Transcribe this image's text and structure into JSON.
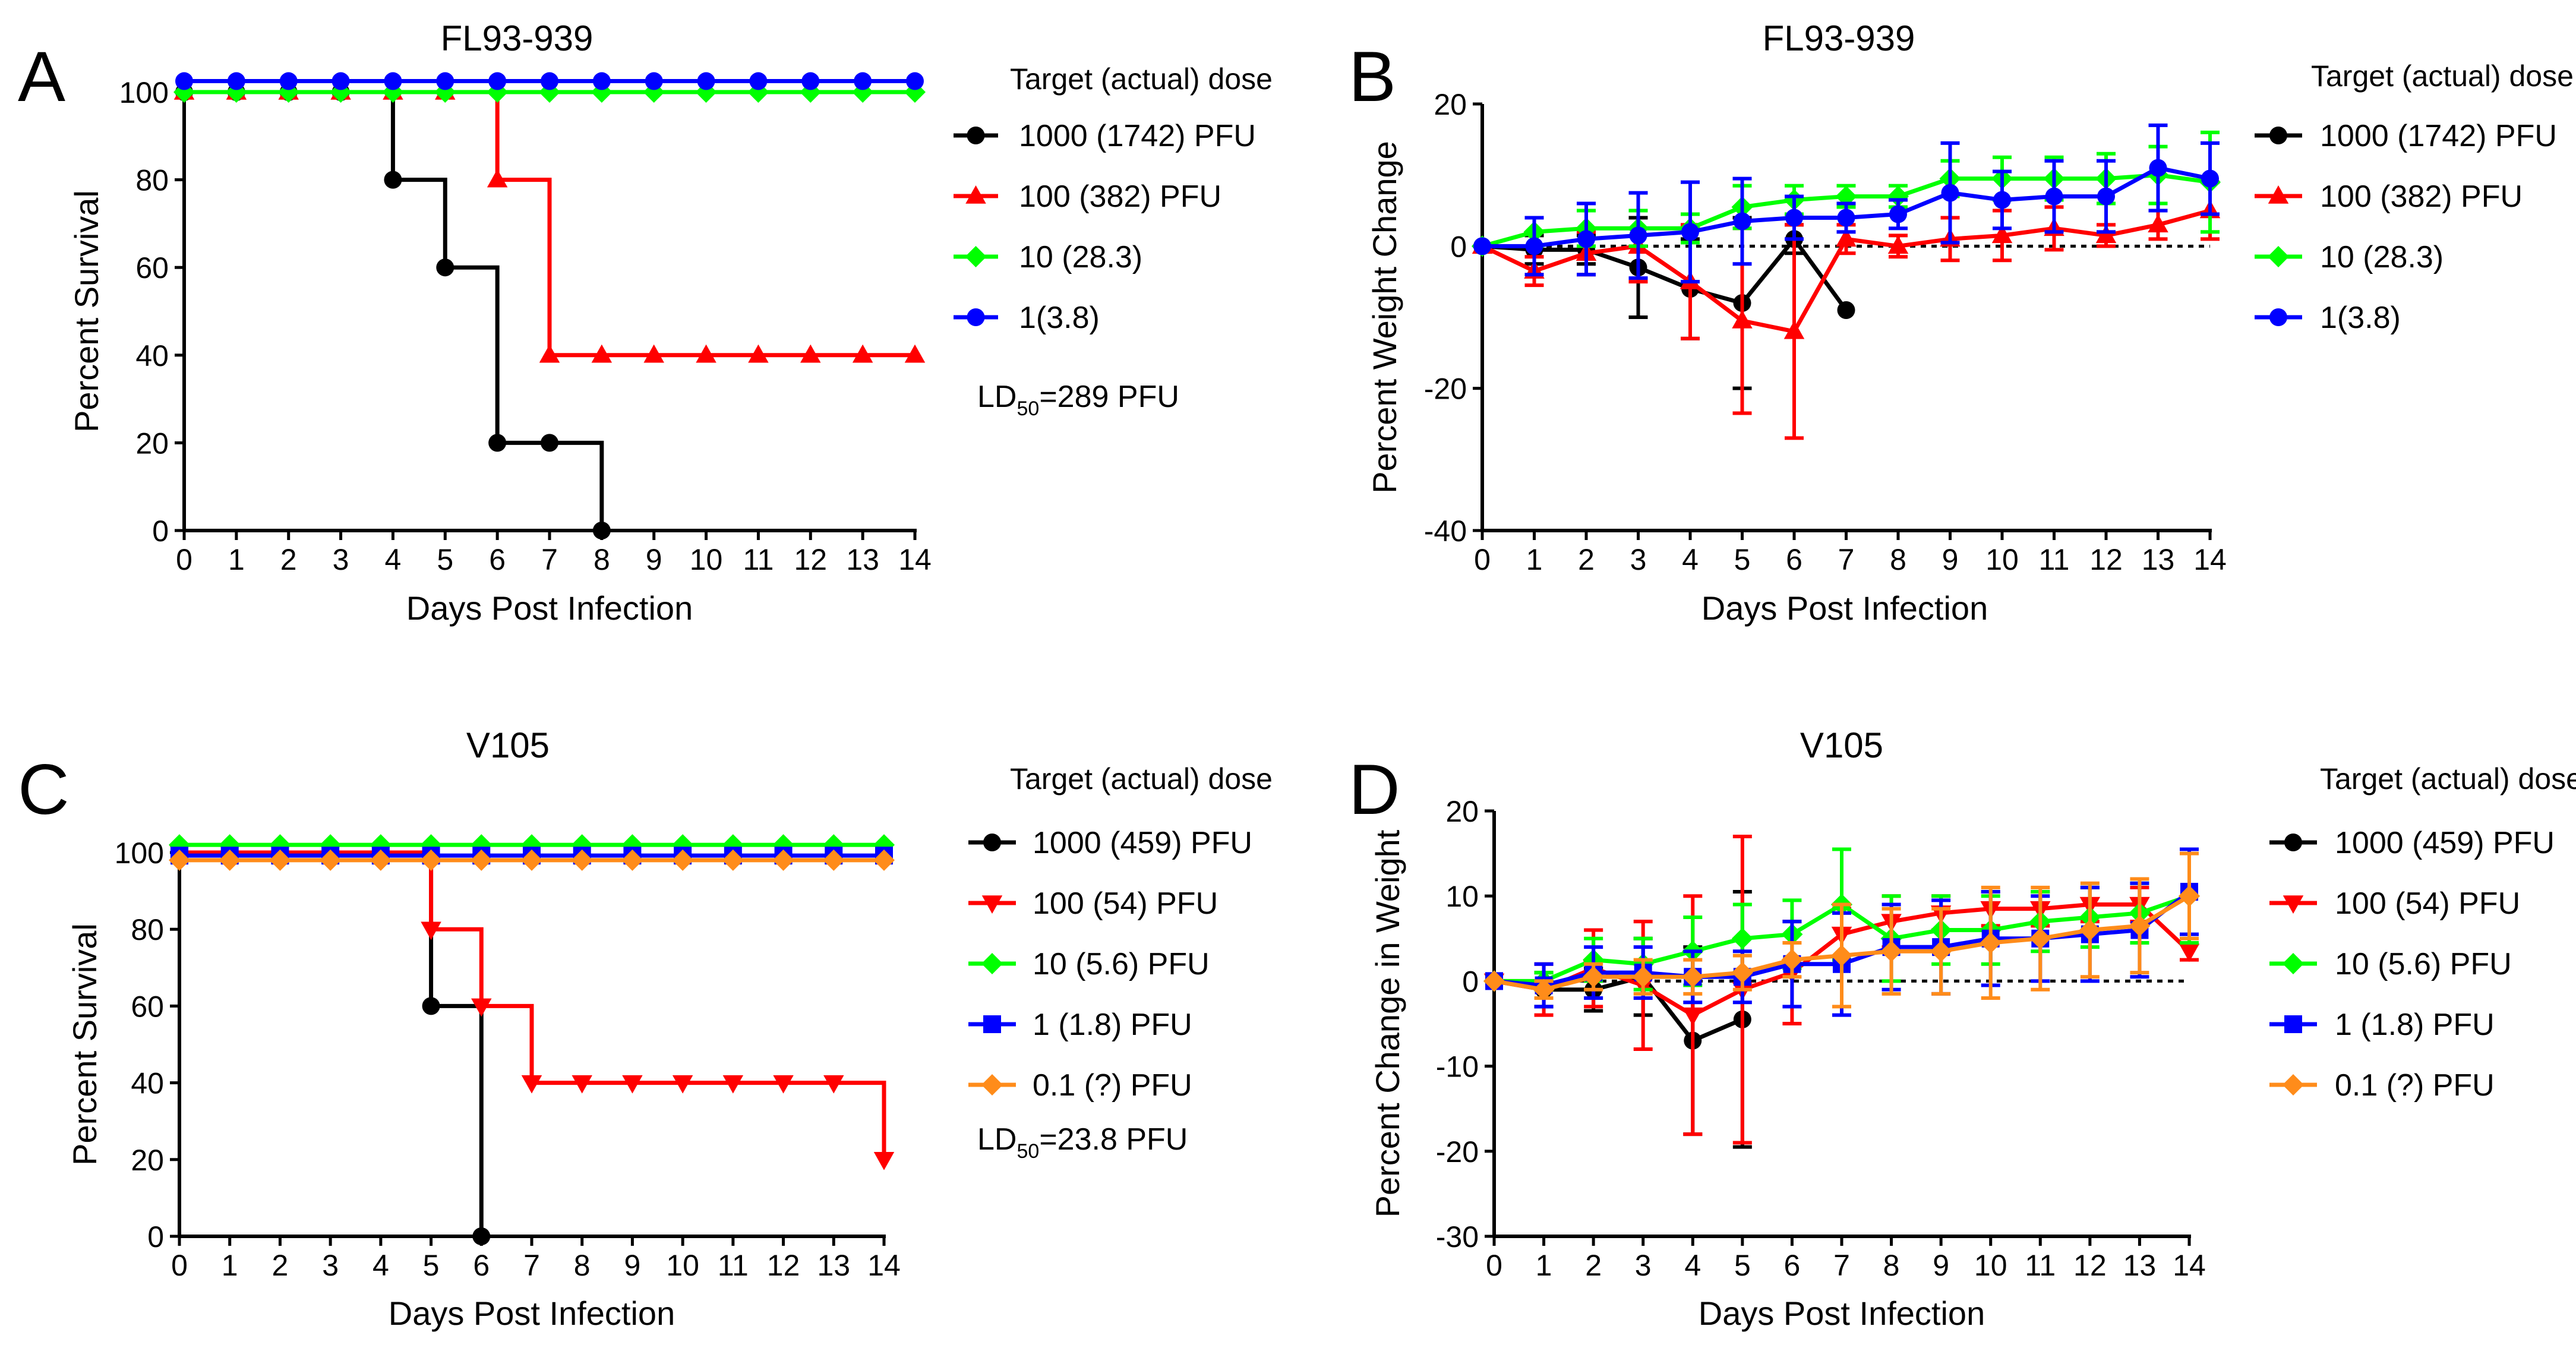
{
  "chart_data": [
    {
      "letter": "A",
      "type": "line",
      "step": true,
      "title": "FL93-939",
      "xlabel": "Days Post Infection",
      "ylabel": "Percent Survival",
      "xlim": [
        0,
        14
      ],
      "ylim": [
        0,
        100
      ],
      "xticks": [
        0,
        1,
        2,
        3,
        4,
        5,
        6,
        7,
        8,
        9,
        10,
        11,
        12,
        13,
        14
      ],
      "yticks": [
        0,
        20,
        40,
        60,
        80,
        100
      ],
      "grid": false,
      "legend_title": "Target (actual) dose",
      "ld50_prefix": "LD",
      "ld50_sub": "50",
      "ld50_value": "=289 PFU",
      "series": [
        {
          "name": "1000 (1742) PFU",
          "color": "#000000",
          "marker": "circle",
          "display_offset": 0,
          "x": [
            0,
            1,
            2,
            3,
            4,
            5,
            6,
            7,
            8
          ],
          "y": [
            100,
            100,
            100,
            100,
            80,
            60,
            20,
            20,
            0
          ]
        },
        {
          "name": "100 (382) PFU",
          "color": "#ff0000",
          "marker": "triangle-up",
          "display_offset": 0,
          "x": [
            0,
            1,
            2,
            3,
            4,
            5,
            6,
            7,
            8,
            9,
            10,
            11,
            12,
            13,
            14
          ],
          "y": [
            100,
            100,
            100,
            100,
            100,
            100,
            80,
            40,
            40,
            40,
            40,
            40,
            40,
            40,
            40
          ]
        },
        {
          "name": "10 (28.3)",
          "color": "#00ff00",
          "marker": "diamond",
          "display_offset": 0,
          "x": [
            0,
            1,
            2,
            3,
            4,
            5,
            6,
            7,
            8,
            9,
            10,
            11,
            12,
            13,
            14
          ],
          "y": [
            100,
            100,
            100,
            100,
            100,
            100,
            100,
            100,
            100,
            100,
            100,
            100,
            100,
            100,
            100
          ]
        },
        {
          "name": "1(3.8)",
          "color": "#0000ff",
          "marker": "circle",
          "display_offset": 2.5,
          "x": [
            0,
            1,
            2,
            3,
            4,
            5,
            6,
            7,
            8,
            9,
            10,
            11,
            12,
            13,
            14
          ],
          "y": [
            100,
            100,
            100,
            100,
            100,
            100,
            100,
            100,
            100,
            100,
            100,
            100,
            100,
            100,
            100
          ]
        }
      ]
    },
    {
      "letter": "B",
      "type": "line",
      "title": "FL93-939",
      "xlabel": "Days Post Infection",
      "ylabel": "Percent Weight Change",
      "xlim": [
        0,
        14
      ],
      "ylim": [
        -40,
        20
      ],
      "xticks": [
        0,
        1,
        2,
        3,
        4,
        5,
        6,
        7,
        8,
        9,
        10,
        11,
        12,
        13,
        14
      ],
      "yticks": [
        -40,
        -20,
        0,
        20
      ],
      "grid": false,
      "reference_line": 0,
      "legend_title": "Target (actual) dose",
      "series": [
        {
          "name": "1000 (1742) PFU",
          "color": "#000000",
          "marker": "circle",
          "x": [
            0,
            1,
            2,
            3,
            4,
            5,
            6,
            7
          ],
          "y": [
            0,
            -0.5,
            -0.5,
            -3,
            -6,
            -8,
            1,
            -9
          ],
          "err": [
            0,
            2,
            2,
            7,
            7,
            12,
            2,
            0
          ]
        },
        {
          "name": "100 (382) PFU",
          "color": "#ff0000",
          "marker": "triangle-up",
          "x": [
            0,
            1,
            2,
            3,
            4,
            5,
            6,
            7,
            8,
            9,
            10,
            11,
            12,
            13,
            14
          ],
          "y": [
            0,
            -3.5,
            -1,
            0,
            -5,
            -10.5,
            -12,
            1,
            0,
            1,
            1.5,
            2.5,
            1.5,
            3,
            5
          ],
          "err": [
            0,
            2,
            3,
            5,
            8,
            13,
            15,
            2,
            1.5,
            3,
            3.5,
            3,
            1.5,
            2,
            4
          ]
        },
        {
          "name": "10 (28.3)",
          "color": "#00ff00",
          "marker": "diamond",
          "x": [
            0,
            1,
            2,
            3,
            4,
            5,
            6,
            7,
            8,
            9,
            10,
            11,
            12,
            13,
            14
          ],
          "y": [
            0,
            2,
            2.5,
            2.5,
            2.5,
            5.5,
            6.5,
            7,
            7,
            9.5,
            9.5,
            9.5,
            9.5,
            10,
            9
          ],
          "err": [
            0,
            2,
            2.5,
            2.5,
            2,
            3,
            2,
            1.5,
            1.5,
            2.5,
            3,
            3,
            3.5,
            4,
            7
          ]
        },
        {
          "name": "1(3.8)",
          "color": "#0000ff",
          "marker": "circle",
          "x": [
            0,
            1,
            2,
            3,
            4,
            5,
            6,
            7,
            8,
            9,
            10,
            11,
            12,
            13,
            14
          ],
          "y": [
            0,
            0,
            1,
            1.5,
            2,
            3.5,
            4,
            4,
            4.5,
            7.5,
            6.5,
            7,
            7,
            11,
            9.5
          ],
          "err": [
            0,
            4,
            5,
            6,
            7,
            6,
            3,
            2,
            2,
            7,
            4,
            5,
            5,
            6,
            5
          ]
        }
      ]
    },
    {
      "letter": "C",
      "type": "line",
      "step": true,
      "title": "V105",
      "xlabel": "Days Post Infection",
      "ylabel": "Percent Survival",
      "xlim": [
        0,
        14
      ],
      "ylim": [
        0,
        100
      ],
      "xticks": [
        0,
        1,
        2,
        3,
        4,
        5,
        6,
        7,
        8,
        9,
        10,
        11,
        12,
        13,
        14
      ],
      "yticks": [
        0,
        20,
        40,
        60,
        80,
        100
      ],
      "grid": false,
      "legend_title": "Target (actual) dose",
      "ld50_prefix": "LD",
      "ld50_sub": "50",
      "ld50_value": "=23.8 PFU",
      "series": [
        {
          "name": "1000 (459) PFU",
          "color": "#000000",
          "marker": "circle",
          "display_offset": 0,
          "x": [
            0,
            1,
            2,
            3,
            4,
            5,
            6
          ],
          "y": [
            100,
            100,
            100,
            100,
            100,
            60,
            0
          ]
        },
        {
          "name": "100 (54) PFU",
          "color": "#ff0000",
          "marker": "triangle-down",
          "display_offset": 0,
          "x": [
            0,
            1,
            2,
            3,
            4,
            5,
            6,
            7,
            8,
            9,
            10,
            11,
            12,
            13,
            14
          ],
          "y": [
            100,
            100,
            100,
            100,
            100,
            80,
            60,
            40,
            40,
            40,
            40,
            40,
            40,
            40,
            20
          ]
        },
        {
          "name": "10 (5.6) PFU",
          "color": "#00ff00",
          "marker": "diamond",
          "display_offset": 2,
          "x": [
            0,
            1,
            2,
            3,
            4,
            5,
            6,
            7,
            8,
            9,
            10,
            11,
            12,
            13,
            14
          ],
          "y": [
            100,
            100,
            100,
            100,
            100,
            100,
            100,
            100,
            100,
            100,
            100,
            100,
            100,
            100,
            100
          ]
        },
        {
          "name": "1 (1.8) PFU",
          "color": "#0000ff",
          "marker": "square",
          "display_offset": -0.8,
          "x": [
            0,
            1,
            2,
            3,
            4,
            5,
            6,
            7,
            8,
            9,
            10,
            11,
            12,
            13,
            14
          ],
          "y": [
            100,
            100,
            100,
            100,
            100,
            100,
            100,
            100,
            100,
            100,
            100,
            100,
            100,
            100,
            100
          ]
        },
        {
          "name": "0.1 (?) PFU",
          "color": "#ff8c1a",
          "marker": "diamond",
          "display_offset": -2,
          "x": [
            0,
            1,
            2,
            3,
            4,
            5,
            6,
            7,
            8,
            9,
            10,
            11,
            12,
            13,
            14
          ],
          "y": [
            100,
            100,
            100,
            100,
            100,
            100,
            100,
            100,
            100,
            100,
            100,
            100,
            100,
            100,
            100
          ]
        }
      ]
    },
    {
      "letter": "D",
      "type": "line",
      "title": "V105",
      "xlabel": "Days Post Infection",
      "ylabel": "Percent Change in Weight",
      "xlim": [
        0,
        14
      ],
      "ylim": [
        -30,
        20
      ],
      "xticks": [
        0,
        1,
        2,
        3,
        4,
        5,
        6,
        7,
        8,
        9,
        10,
        11,
        12,
        13,
        14
      ],
      "yticks": [
        -30,
        -20,
        -10,
        0,
        10,
        20
      ],
      "grid": false,
      "reference_line": 0,
      "legend_title": "Target (actual) dose",
      "series": [
        {
          "name": "1000 (459) PFU",
          "color": "#000000",
          "marker": "circle",
          "x": [
            0,
            1,
            2,
            3,
            4,
            5
          ],
          "y": [
            0,
            -1,
            -1,
            0.5,
            -7,
            -4.5
          ],
          "err": [
            0,
            2,
            2.5,
            4.5,
            11,
            15
          ]
        },
        {
          "name": "100 (54) PFU",
          "color": "#ff0000",
          "marker": "triangle-down",
          "x": [
            0,
            1,
            2,
            3,
            4,
            5,
            6,
            7,
            8,
            9,
            10,
            11,
            12,
            13,
            14
          ],
          "y": [
            0,
            -1,
            1.5,
            -0.5,
            -4,
            -1,
            1,
            5.5,
            7,
            8,
            8.5,
            8.5,
            9,
            9,
            3.5
          ],
          "err": [
            0,
            3,
            4.5,
            7.5,
            14,
            18,
            6,
            3,
            3,
            2,
            2,
            2,
            2,
            2,
            1
          ]
        },
        {
          "name": "10 (5.6) PFU",
          "color": "#00ff00",
          "marker": "diamond",
          "x": [
            0,
            1,
            2,
            3,
            4,
            5,
            6,
            7,
            8,
            9,
            10,
            11,
            12,
            13,
            14
          ],
          "y": [
            0,
            0,
            2.5,
            2,
            3.5,
            5,
            5.5,
            9,
            5,
            6,
            6,
            7,
            7.5,
            8,
            10
          ],
          "err": [
            0,
            1,
            2.5,
            3,
            4,
            4,
            4,
            6.5,
            5,
            4,
            4,
            3.5,
            3.5,
            3.5,
            5.5
          ]
        },
        {
          "name": "1 (1.8) PFU",
          "color": "#0000ff",
          "marker": "square",
          "x": [
            0,
            1,
            2,
            3,
            4,
            5,
            6,
            7,
            8,
            9,
            10,
            11,
            12,
            13,
            14
          ],
          "y": [
            0,
            -0.5,
            1,
            1,
            0.5,
            0.5,
            2,
            2,
            4,
            4,
            5,
            5,
            5.5,
            6,
            10.5
          ],
          "err": [
            0,
            2.5,
            3,
            3,
            3,
            3,
            5,
            6,
            5,
            5.5,
            5.5,
            5,
            5.5,
            5.5,
            5
          ]
        },
        {
          "name": "0.1 (?) PFU",
          "color": "#ff8c1a",
          "marker": "diamond",
          "x": [
            0,
            1,
            2,
            3,
            4,
            5,
            6,
            7,
            8,
            9,
            10,
            11,
            12,
            13,
            14
          ],
          "y": [
            0,
            -1,
            0.5,
            0.5,
            0.5,
            1,
            2.5,
            3,
            3.5,
            3.5,
            4.5,
            5,
            6,
            6.5,
            10
          ],
          "err": [
            0,
            1,
            1.5,
            2,
            2,
            2,
            2,
            6,
            5,
            5,
            6.5,
            6,
            5.5,
            5.5,
            5
          ]
        }
      ]
    }
  ]
}
